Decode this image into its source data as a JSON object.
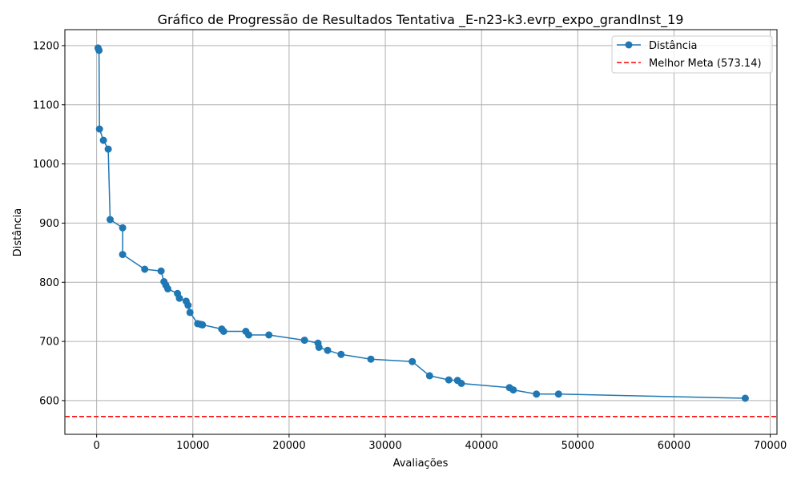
{
  "chart_data": {
    "type": "line",
    "title": "Gráfico de Progressão de Resultados Tentativa _E-n23-k3.evrp_expo_grandInst_19",
    "xlabel": "Avaliações",
    "ylabel": "Distância",
    "xlim": [
      -3300,
      70700
    ],
    "ylim": [
      543,
      1227
    ],
    "xticks": [
      0,
      10000,
      20000,
      30000,
      40000,
      50000,
      60000,
      70000
    ],
    "yticks": [
      600,
      700,
      800,
      900,
      1000,
      1100,
      1200
    ],
    "grid": true,
    "legend_position": "top-right",
    "series": [
      {
        "name": "Distância",
        "color": "#1f77b4",
        "marker": "circle",
        "x": [
          150,
          250,
          300,
          700,
          1200,
          1400,
          2700,
          2700,
          5000,
          6700,
          7000,
          7200,
          7400,
          8400,
          8600,
          9300,
          9500,
          9700,
          10500,
          10800,
          11000,
          13000,
          13200,
          15500,
          15800,
          17900,
          21600,
          23000,
          23100,
          24000,
          25400,
          28500,
          32800,
          34600,
          36600,
          37500,
          37900,
          42900,
          43300,
          45700,
          48000,
          67400
        ],
        "y": [
          1196,
          1192,
          1059,
          1040,
          1025,
          906,
          892,
          847,
          822,
          819,
          801,
          795,
          789,
          781,
          773,
          768,
          761,
          749,
          730,
          729,
          728,
          721,
          717,
          717,
          711,
          711,
          702,
          697,
          690,
          685,
          678,
          670,
          666,
          642,
          635,
          634,
          629,
          622,
          618,
          611,
          611,
          604
        ]
      }
    ],
    "reference_lines": [
      {
        "name": "Melhor Meta (573.14)",
        "value": 573.14,
        "color": "#ff0000",
        "style": "dashed"
      }
    ]
  }
}
